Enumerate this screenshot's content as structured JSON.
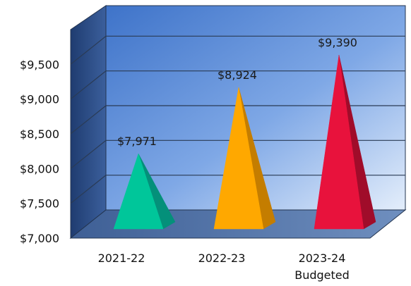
{
  "chart_data": {
    "type": "bar",
    "bar_shape": "pyramid-3d",
    "categories": [
      [
        "2021-22"
      ],
      [
        "2022-23"
      ],
      [
        "2023-24",
        "Budgeted"
      ]
    ],
    "values": [
      7971,
      8924,
      9390
    ],
    "data_labels": [
      "$7,971",
      "$8,924",
      "$9,390"
    ],
    "ylim": [
      7000,
      10000
    ],
    "ytick_values": [
      7000,
      7500,
      8000,
      8500,
      9000,
      9500
    ],
    "ytick_labels": [
      "$7,000",
      "$7,500",
      "$8,000",
      "$8,500",
      "$9,000",
      "$9,500"
    ],
    "grid": true,
    "title": "",
    "xlabel": "",
    "ylabel": "",
    "colors": {
      "bar_fronts": [
        "#00c69a",
        "#ffa800",
        "#e8123c"
      ],
      "bar_sides": [
        "#04907a",
        "#c47d00",
        "#a00c2a"
      ],
      "wall_light": "#dbe8f8",
      "wall_dark": "#3f78cf",
      "gridline": "#2a3b55"
    }
  }
}
